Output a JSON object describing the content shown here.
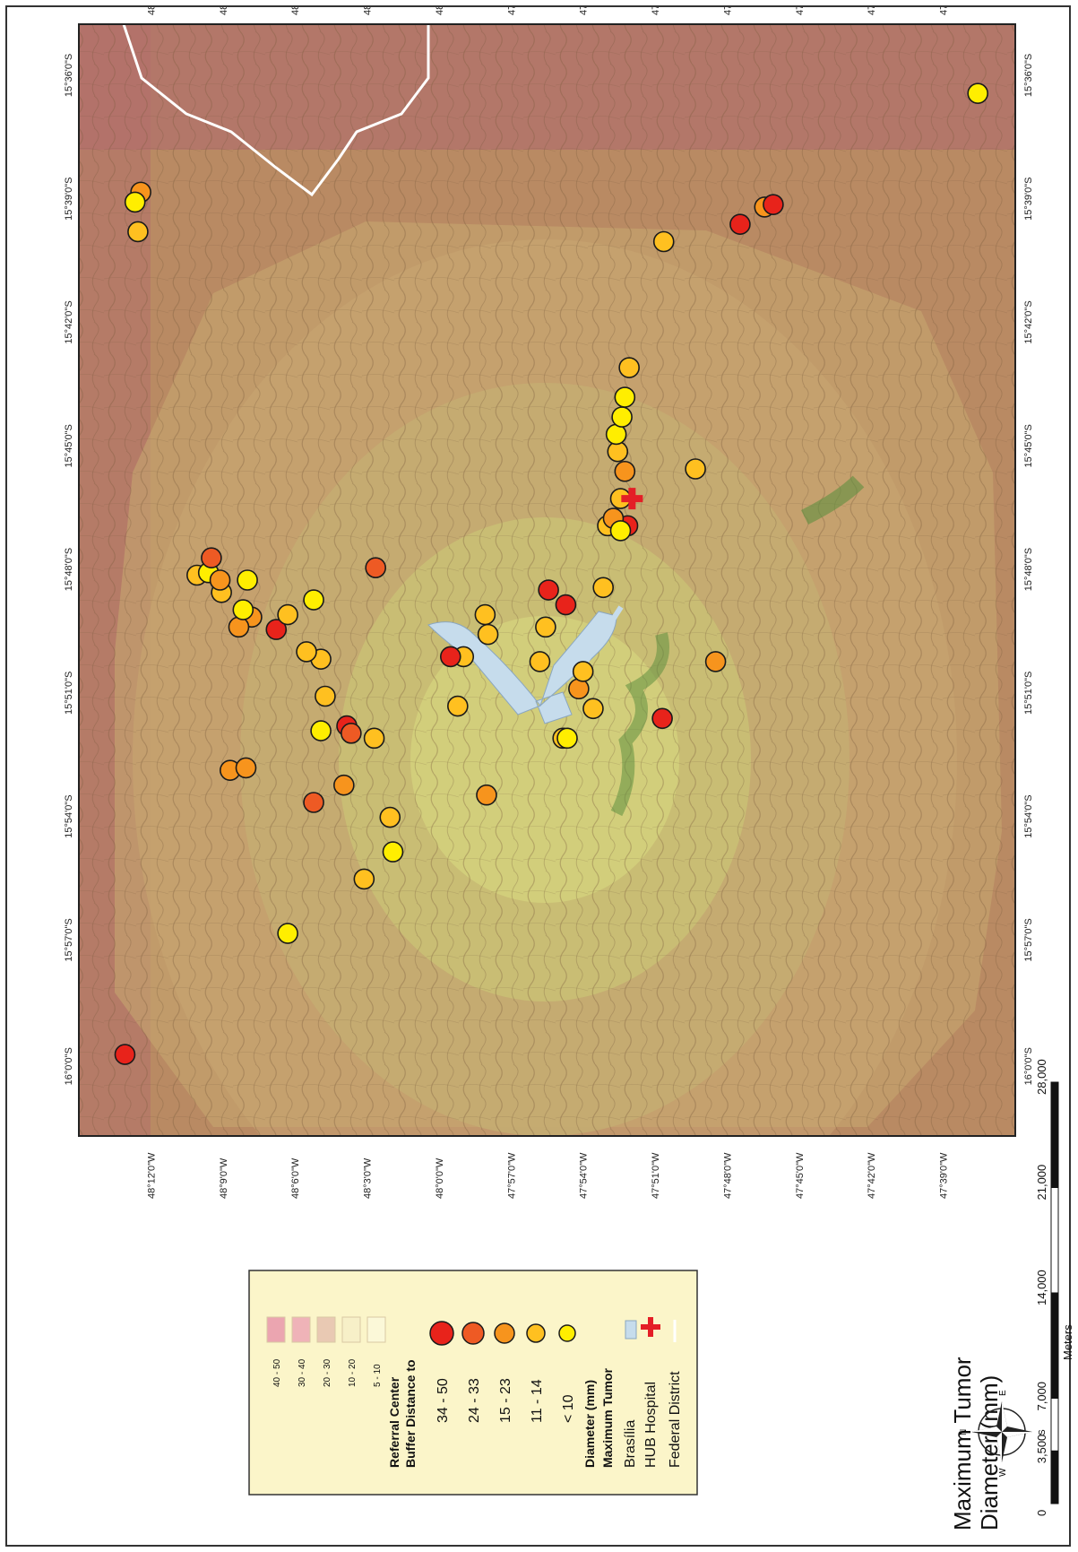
{
  "title": {
    "line1": "Maximum Tumor",
    "line2": "Diameter (mm)"
  },
  "axes": {
    "longitude_ticks": [
      "48°12'0\"W",
      "48°9'0\"W",
      "48°6'0\"W",
      "48°3'0\"W",
      "48°0'0\"W",
      "47°57'0\"W",
      "47°54'0\"W",
      "47°51'0\"W",
      "47°48'0\"W",
      "47°45'0\"W",
      "47°42'0\"W",
      "47°39'0\"W"
    ],
    "latitude_ticks_top": [
      "16°0'0\"S",
      "15°57'0\"S",
      "15°54'0\"S",
      "15°51'0\"S",
      "15°48'0\"S",
      "15°45'0\"S",
      "15°42'0\"S",
      "15°39'0\"S",
      "15°36'0\"S"
    ],
    "latitude_ticks_bottom": [
      "16°0'0\"S",
      "15°57'0\"S",
      "15°54'0\"S",
      "15°51'0\"S",
      "15°48'0\"S",
      "15°45'0\"S",
      "15°42'0\"S",
      "15°39'0\"S",
      "15°36'0\"S"
    ]
  },
  "legend": {
    "federal_district": "Federal District",
    "hub_hospital": "HUB Hospital",
    "brasilia": "Brasília",
    "diameter_header_1": "Maximum Tumor",
    "diameter_header_2": "Diameter (mm)",
    "diameter_classes": [
      {
        "label": "< 10",
        "color": "#ffee00"
      },
      {
        "label": "11 - 14",
        "color": "#ffc020"
      },
      {
        "label": "15 - 23",
        "color": "#f7941d"
      },
      {
        "label": "24 - 33",
        "color": "#ee5a24"
      },
      {
        "label": "34 - 50",
        "color": "#e8231b"
      }
    ],
    "buffer_header_1": "Buffer Distance to",
    "buffer_header_2": "Referral Center",
    "buffer_classes": [
      {
        "label": "5 - 10",
        "color": "#fbf8d8"
      },
      {
        "label": "10 - 20",
        "color": "#f7f0c8"
      },
      {
        "label": "20 - 30",
        "color": "#e9c9b3"
      },
      {
        "label": "30 - 40",
        "color": "#efb3b8"
      },
      {
        "label": "40 - 50",
        "color": "#eba5b0"
      }
    ]
  },
  "scale_bar": {
    "labels": [
      "0",
      "3,500",
      "7,000",
      "14,000",
      "21,000",
      "28,000"
    ],
    "unit": "Meters",
    "values": [
      0,
      3500,
      7000,
      14000,
      21000,
      28000
    ]
  },
  "compass": {
    "n": "N",
    "s": "S",
    "e": "E",
    "w": "W"
  },
  "colors": {
    "outer_ring": "#b98a63",
    "ring_3": "#c69c6a",
    "ring_2": "#c7ae6f",
    "inner": "#cfc877",
    "lake": "#c6dcec",
    "hospital": "#e41e26",
    "boundary": "#ffffff"
  },
  "cases": [
    {
      "lon": -48.218,
      "lat": -15.997,
      "cls": 4
    },
    {
      "lon": -48.064,
      "lat": -15.864,
      "cls": 4
    },
    {
      "lon": -47.869,
      "lat": -15.783,
      "cls": 4
    },
    {
      "lon": -47.912,
      "lat": -15.815,
      "cls": 4
    },
    {
      "lon": -48.061,
      "lat": -15.867,
      "cls": 3
    },
    {
      "lon": -48.087,
      "lat": -15.895,
      "cls": 3
    },
    {
      "lon": -48.044,
      "lat": -15.8,
      "cls": 3
    },
    {
      "lon": -48.113,
      "lat": -15.825,
      "cls": 4
    },
    {
      "lon": -48.066,
      "lat": -15.888,
      "cls": 2
    },
    {
      "lon": -48.13,
      "lat": -15.82,
      "cls": 2
    },
    {
      "lon": -48.145,
      "lat": -15.882,
      "cls": 2
    },
    {
      "lon": -48.134,
      "lat": -15.881,
      "cls": 2
    },
    {
      "lon": -48.139,
      "lat": -15.824,
      "cls": 2
    },
    {
      "lon": -48.105,
      "lat": -15.819,
      "cls": 1
    },
    {
      "lon": -48.079,
      "lat": -15.852,
      "cls": 1
    },
    {
      "lon": -48.082,
      "lat": -15.837,
      "cls": 1
    },
    {
      "lon": -48.092,
      "lat": -15.834,
      "cls": 1
    },
    {
      "lon": -48.052,
      "lat": -15.926,
      "cls": 1
    },
    {
      "lon": -48.034,
      "lat": -15.901,
      "cls": 1
    },
    {
      "lon": -48.105,
      "lat": -15.948,
      "cls": 0
    },
    {
      "lon": -48.082,
      "lat": -15.866,
      "cls": 0
    },
    {
      "lon": -48.045,
      "lat": -15.869,
      "cls": 1
    },
    {
      "lon": -48.133,
      "lat": -15.805,
      "cls": 0
    },
    {
      "lon": -48.136,
      "lat": -15.817,
      "cls": 0
    },
    {
      "lon": -48.151,
      "lat": -15.81,
      "cls": 1
    },
    {
      "lon": -48.168,
      "lat": -15.803,
      "cls": 1
    },
    {
      "lon": -48.16,
      "lat": -15.802,
      "cls": 0
    },
    {
      "lon": -48.152,
      "lat": -15.805,
      "cls": 2
    },
    {
      "lon": -48.158,
      "lat": -15.796,
      "cls": 3
    },
    {
      "lon": -48.087,
      "lat": -15.813,
      "cls": 0
    },
    {
      "lon": -48.032,
      "lat": -15.915,
      "cls": 0
    },
    {
      "lon": -47.983,
      "lat": -15.836,
      "cls": 1
    },
    {
      "lon": -47.987,
      "lat": -15.856,
      "cls": 1
    },
    {
      "lon": -47.992,
      "lat": -15.836,
      "cls": 4
    },
    {
      "lon": -47.968,
      "lat": -15.819,
      "cls": 1
    },
    {
      "lon": -47.966,
      "lat": -15.827,
      "cls": 1
    },
    {
      "lon": -47.967,
      "lat": -15.892,
      "cls": 2
    },
    {
      "lon": -47.93,
      "lat": -15.838,
      "cls": 1
    },
    {
      "lon": -47.926,
      "lat": -15.824,
      "cls": 1
    },
    {
      "lon": -47.924,
      "lat": -15.809,
      "cls": 4
    },
    {
      "lon": -47.914,
      "lat": -15.869,
      "cls": 1
    },
    {
      "lon": -47.911,
      "lat": -15.869,
      "cls": 0
    },
    {
      "lon": -47.903,
      "lat": -15.849,
      "cls": 2
    },
    {
      "lon": -47.9,
      "lat": -15.842,
      "cls": 1
    },
    {
      "lon": -47.893,
      "lat": -15.857,
      "cls": 1
    },
    {
      "lon": -47.886,
      "lat": -15.808,
      "cls": 1
    },
    {
      "lon": -47.883,
      "lat": -15.783,
      "cls": 1
    },
    {
      "lon": -47.879,
      "lat": -15.78,
      "cls": 2
    },
    {
      "lon": -47.874,
      "lat": -15.772,
      "cls": 1
    },
    {
      "lon": -47.871,
      "lat": -15.761,
      "cls": 2
    },
    {
      "lon": -47.874,
      "lat": -15.785,
      "cls": 0
    },
    {
      "lon": -47.876,
      "lat": -15.753,
      "cls": 1
    },
    {
      "lon": -47.877,
      "lat": -15.746,
      "cls": 0
    },
    {
      "lon": -47.873,
      "lat": -15.739,
      "cls": 0
    },
    {
      "lon": -47.871,
      "lat": -15.731,
      "cls": 0
    },
    {
      "lon": -47.868,
      "lat": -15.719,
      "cls": 1
    },
    {
      "lon": -47.845,
      "lat": -15.861,
      "cls": 4
    },
    {
      "lon": -47.822,
      "lat": -15.76,
      "cls": 1
    },
    {
      "lon": -47.808,
      "lat": -15.838,
      "cls": 2
    },
    {
      "lon": -47.844,
      "lat": -15.668,
      "cls": 1
    },
    {
      "lon": -47.791,
      "lat": -15.661,
      "cls": 4
    },
    {
      "lon": -47.774,
      "lat": -15.654,
      "cls": 2
    },
    {
      "lon": -47.768,
      "lat": -15.653,
      "cls": 4
    },
    {
      "lon": -48.207,
      "lat": -15.648,
      "cls": 2
    },
    {
      "lon": -48.209,
      "lat": -15.664,
      "cls": 1
    },
    {
      "lon": -48.211,
      "lat": -15.652,
      "cls": 0
    },
    {
      "lon": -47.626,
      "lat": -15.608,
      "cls": 0
    }
  ],
  "hospital_location": {
    "lon": -47.866,
    "lat": -15.772
  }
}
